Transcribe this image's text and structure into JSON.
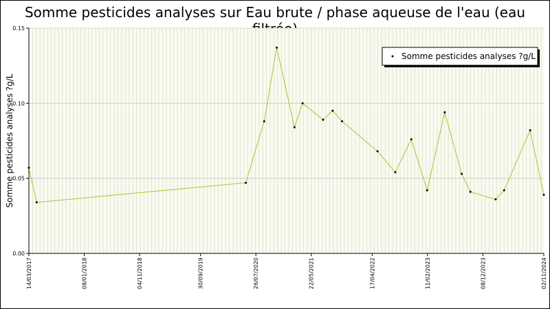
{
  "chart_data": {
    "type": "line",
    "title": "Somme pesticides analyses sur Eau brute / phase aqueuse de l'eau (eau filtrée)",
    "ylabel": "Somme pesticides analyses ?g/L",
    "xlabel": "",
    "ylim": [
      0,
      0.15
    ],
    "yticks": [
      "0.00",
      "0.05",
      "0.10",
      "0.15"
    ],
    "xlim": [
      "2017-03-14",
      "2024-11-02"
    ],
    "xtick_labels": [
      {
        "date": "2017-03-14",
        "label": "14/03/2017"
      },
      {
        "date": "2018-01-08",
        "label": "08/01/2018"
      },
      {
        "date": "2018-11-04",
        "label": "04/11/2018"
      },
      {
        "date": "2019-09-30",
        "label": "30/09/2019"
      },
      {
        "date": "2020-07-26",
        "label": "26/07/2020"
      },
      {
        "date": "2021-05-22",
        "label": "22/05/2021"
      },
      {
        "date": "2022-04-17",
        "label": "17/04/2022"
      },
      {
        "date": "2023-02-11",
        "label": "11/02/2023"
      },
      {
        "date": "2023-12-08",
        "label": "08/12/2023"
      },
      {
        "date": "2024-11-02",
        "label": "02/11/2024"
      }
    ],
    "grid": true,
    "legend_position": "top-right",
    "line_color": "#99cc33",
    "marker_color": "#000000",
    "series": [
      {
        "name": "Somme pesticides analyses ?g/L",
        "points": [
          {
            "x": "2017-03-14",
            "y": 0.057
          },
          {
            "x": "2017-04-25",
            "y": 0.034
          },
          {
            "x": "2020-06-01",
            "y": 0.047
          },
          {
            "x": "2020-09-09",
            "y": 0.088
          },
          {
            "x": "2020-11-16",
            "y": 0.137
          },
          {
            "x": "2021-02-20",
            "y": 0.084
          },
          {
            "x": "2021-04-05",
            "y": 0.1
          },
          {
            "x": "2021-07-25",
            "y": 0.089
          },
          {
            "x": "2021-09-15",
            "y": 0.095
          },
          {
            "x": "2021-11-05",
            "y": 0.088
          },
          {
            "x": "2022-05-16",
            "y": 0.068
          },
          {
            "x": "2022-08-20",
            "y": 0.054
          },
          {
            "x": "2022-11-15",
            "y": 0.076
          },
          {
            "x": "2023-02-09",
            "y": 0.042
          },
          {
            "x": "2023-05-15",
            "y": 0.094
          },
          {
            "x": "2023-08-15",
            "y": 0.053
          },
          {
            "x": "2023-10-01",
            "y": 0.041
          },
          {
            "x": "2024-02-15",
            "y": 0.036
          },
          {
            "x": "2024-04-01",
            "y": 0.042
          },
          {
            "x": "2024-08-20",
            "y": 0.082
          },
          {
            "x": "2024-11-02",
            "y": 0.039
          }
        ]
      }
    ]
  }
}
